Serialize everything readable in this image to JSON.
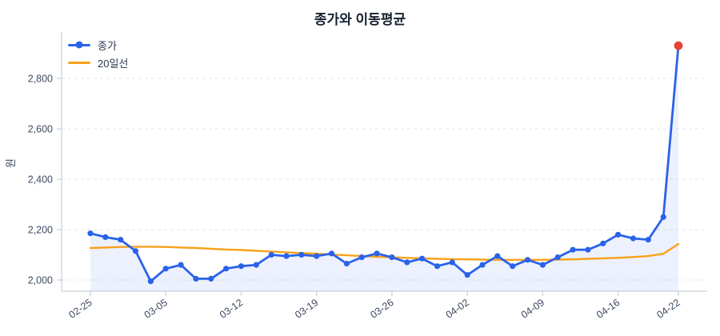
{
  "title": "종가와 이동평균",
  "y_axis_label": "원",
  "legend": [
    {
      "label": "종가",
      "color": "#2a62e9",
      "marker": true
    },
    {
      "label": "20일선",
      "color": "#f9a11b",
      "marker": false
    }
  ],
  "colors": {
    "close_line": "#2a62e9",
    "ma_line": "#f9a11b",
    "last_point": "#e8433a",
    "area_fill": "rgba(42,98,233,0.085)",
    "grid": "#e3e7ee",
    "axis": "#ccd3dd",
    "tick_text": "#3e4a61",
    "title_text": "#16202f"
  },
  "chart_data": {
    "type": "line",
    "title": "종가와 이동평균",
    "ylabel": "원",
    "legend_position": "top-left",
    "grid": "horizontal-dashed",
    "ylim": [
      1955,
      2990
    ],
    "yticks": [
      {
        "value": 2000,
        "label": "2,000"
      },
      {
        "value": 2200,
        "label": "2,200"
      },
      {
        "value": 2400,
        "label": "2,400"
      },
      {
        "value": 2600,
        "label": "2,600"
      },
      {
        "value": 2800,
        "label": "2,800"
      }
    ],
    "x_ticks": [
      {
        "index": 0,
        "label": "02-25"
      },
      {
        "index": 5,
        "label": "03-05"
      },
      {
        "index": 10,
        "label": "03-12"
      },
      {
        "index": 15,
        "label": "03-19"
      },
      {
        "index": 20,
        "label": "03-26"
      },
      {
        "index": 25,
        "label": "04-02"
      },
      {
        "index": 30,
        "label": "04-09"
      },
      {
        "index": 35,
        "label": "04-16"
      },
      {
        "index": 39,
        "label": "04-22"
      }
    ],
    "series": [
      {
        "name": "종가",
        "style": "line+markers+area",
        "color": "#2a62e9",
        "last_point_color": "#e8433a",
        "values": [
          2185,
          2170,
          2160,
          2115,
          1995,
          2045,
          2060,
          2005,
          2005,
          2045,
          2055,
          2060,
          2100,
          2095,
          2100,
          2095,
          2105,
          2065,
          2090,
          2105,
          2090,
          2070,
          2085,
          2055,
          2070,
          2020,
          2060,
          2095,
          2055,
          2080,
          2060,
          2090,
          2120,
          2120,
          2145,
          2180,
          2165,
          2160,
          2250,
          2930
        ]
      },
      {
        "name": "20일선",
        "style": "line",
        "color": "#f9a11b",
        "values": [
          2127,
          2129,
          2131,
          2132,
          2132,
          2131,
          2129,
          2127,
          2124,
          2121,
          2119,
          2116,
          2113,
          2110,
          2107,
          2104,
          2101,
          2098,
          2095,
          2092,
          2090,
          2088,
          2086,
          2084,
          2083,
          2082,
          2081,
          2080,
          2080,
          2080,
          2080,
          2081,
          2082,
          2084,
          2086,
          2088,
          2091,
          2095,
          2104,
          2143
        ]
      }
    ]
  }
}
